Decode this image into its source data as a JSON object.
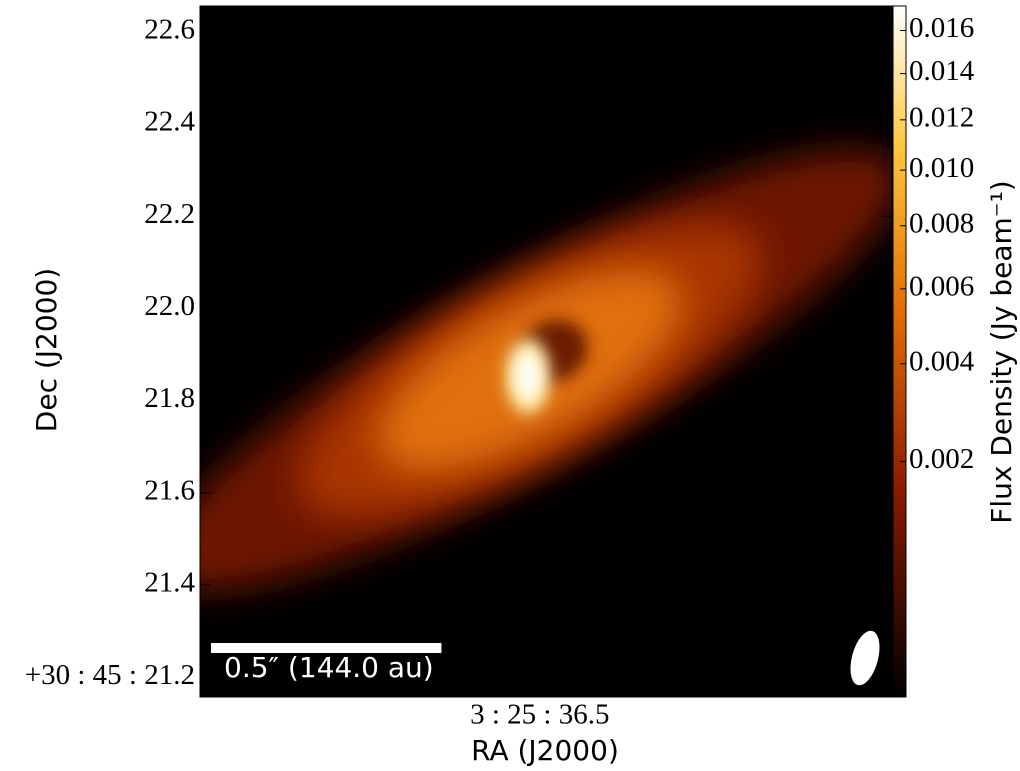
{
  "chart_data": {
    "type": "image",
    "x_label": "RA (J2000)",
    "y_label": "Dec (J2000)",
    "xlim": [
      36.5573,
      36.4406
    ],
    "xticks": [
      {
        "value": 36.5,
        "label": "3 : 25 : 36.5"
      }
    ],
    "ylim": [
      21.157,
      22.656
    ],
    "yticks": [
      {
        "value": 21.2,
        "label": "+30 : 45 : 21.2"
      },
      21.4,
      21.6,
      21.8,
      {
        "value": 22.0,
        "label": "22.0"
      },
      22.2,
      22.4,
      22.6
    ],
    "colorbar": {
      "label": "Flux Density (Jy beam⁻¹)",
      "lim": [
        0,
        0.0172
      ],
      "stretch": "sqrt",
      "ticks": [
        0.002,
        0.004,
        0.006,
        0.008,
        {
          "value": 0.01,
          "label": "0.010"
        },
        0.012,
        0.014,
        0.016
      ]
    },
    "scalebar": {
      "label": "0.5″ (144.0 au)",
      "length": 0.5,
      "color": "#ffffff"
    }
  }
}
